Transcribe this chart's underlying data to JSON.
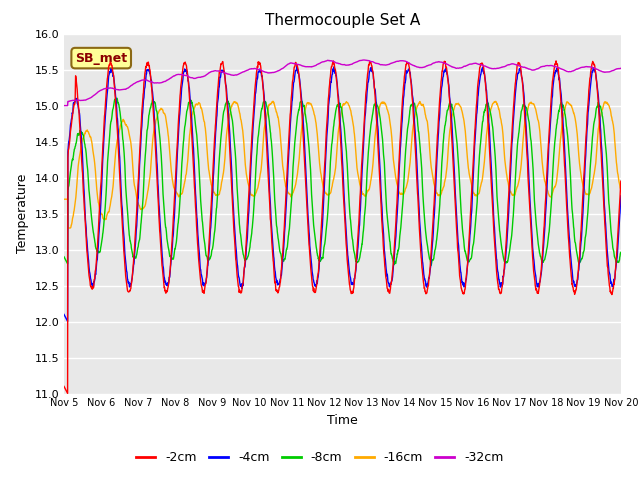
{
  "title": "Thermocouple Set A",
  "xlabel": "Time",
  "ylabel": "Temperature",
  "ylim": [
    11.0,
    16.0
  ],
  "yticks": [
    11.0,
    11.5,
    12.0,
    12.5,
    13.0,
    13.5,
    14.0,
    14.5,
    15.0,
    15.5,
    16.0
  ],
  "xtick_labels": [
    "Nov 5",
    "Nov 6",
    "Nov 7",
    "Nov 8",
    "Nov 9",
    "Nov 10",
    "Nov 11",
    "Nov 12",
    "Nov 13",
    "Nov 14",
    "Nov 15",
    "Nov 16",
    "Nov 17",
    "Nov 18",
    "Nov 19",
    "Nov 20"
  ],
  "plot_bg_color": "#e8e8e8",
  "fig_bg_color": "#ffffff",
  "line_colors": {
    "-2cm": "#ff0000",
    "-4cm": "#0000ff",
    "-8cm": "#00cc00",
    "-16cm": "#ffaa00",
    "-32cm": "#cc00cc"
  },
  "legend_label": "SB_met",
  "legend_entries": [
    "-2cm",
    "-4cm",
    "-8cm",
    "-16cm",
    "-32cm"
  ]
}
